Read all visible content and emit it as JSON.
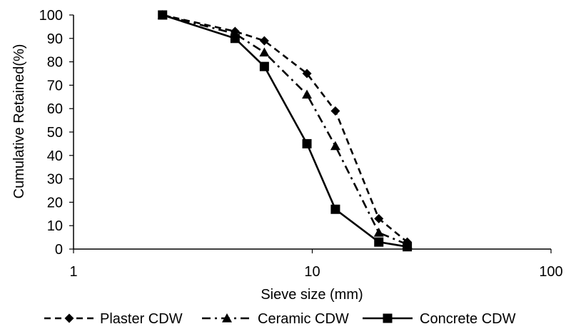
{
  "chart_data": {
    "type": "line",
    "title": "",
    "xlabel": "Sieve size (mm)",
    "ylabel": "Cumulative  Retained(%)",
    "xscale": "log",
    "xlim": [
      1,
      100
    ],
    "ylim": [
      0,
      100
    ],
    "x_ticks": [
      "1",
      "10",
      "100"
    ],
    "y_ticks": [
      "0",
      "10",
      "20",
      "30",
      "40",
      "50",
      "60",
      "70",
      "80",
      "90",
      "100"
    ],
    "grid": false,
    "legend": "bottom",
    "series": [
      {
        "name": "Plaster CDW",
        "marker": "diamond",
        "line": "dashed",
        "color": "#000000",
        "x": [
          2.36,
          4.75,
          6.3,
          9.5,
          12.5,
          19,
          25
        ],
        "y": [
          100,
          93,
          89,
          75,
          59,
          13,
          3
        ]
      },
      {
        "name": "Ceramic CDW",
        "marker": "triangle",
        "line": "dash-dot",
        "color": "#000000",
        "x": [
          2.36,
          4.75,
          6.3,
          9.5,
          12.5,
          19,
          25
        ],
        "y": [
          100,
          92,
          84,
          66,
          44,
          7,
          2
        ]
      },
      {
        "name": "Concrete CDW",
        "marker": "square",
        "line": "solid",
        "color": "#000000",
        "x": [
          2.36,
          4.75,
          6.3,
          9.5,
          12.5,
          19,
          25
        ],
        "y": [
          100,
          90,
          78,
          45,
          17,
          3,
          1
        ]
      }
    ]
  }
}
